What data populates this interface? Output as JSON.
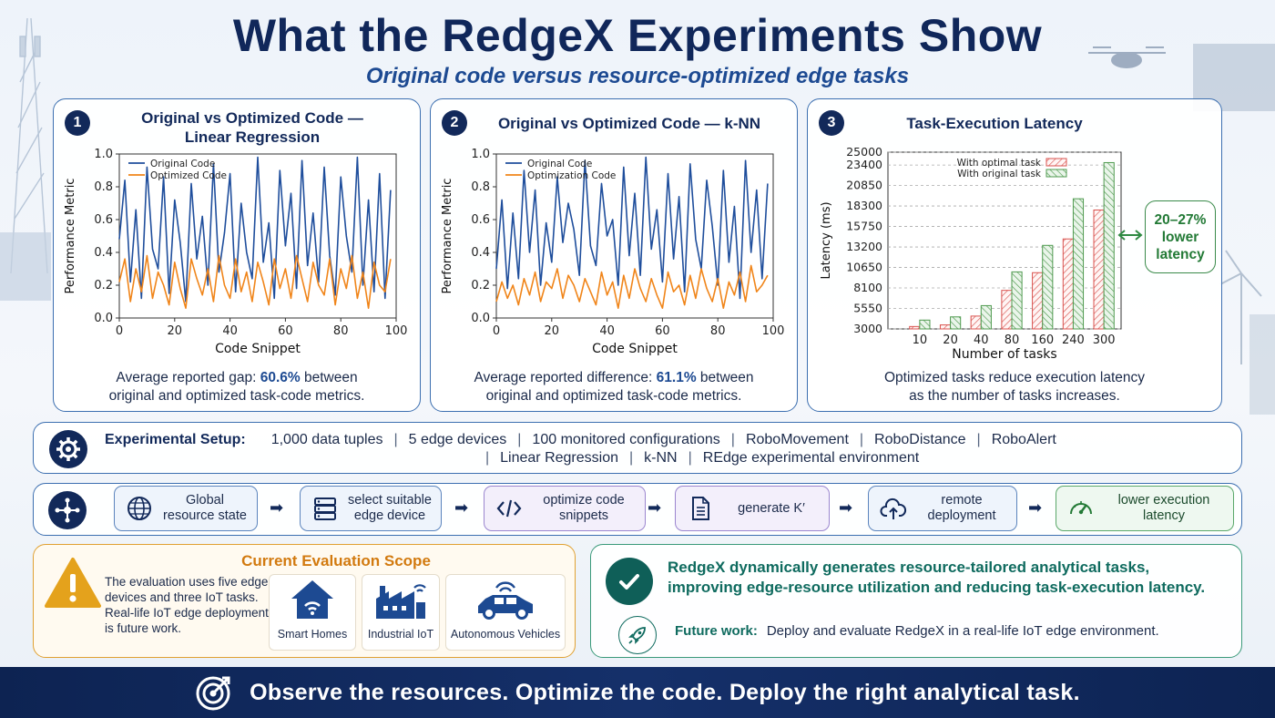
{
  "header": {
    "title": "What the RedgeX Experiments Show",
    "subtitle": "Original code versus resource-optimized edge tasks"
  },
  "panels": [
    {
      "number": "1",
      "title": "Original vs Optimized Code —\nLinear Regression",
      "caption_pre": "Average reported gap: ",
      "caption_value": "60.6%",
      "caption_post": " between\noriginal and optimized task-code metrics."
    },
    {
      "number": "2",
      "title": "Original vs Optimized Code — k-NN",
      "caption_pre": "Average reported difference: ",
      "caption_value": "61.1%",
      "caption_post": " between\noriginal and optimized task-code metrics."
    },
    {
      "number": "3",
      "title": "Task-Execution Latency",
      "caption": "Optimized tasks reduce execution latency\nas the number of tasks increases.",
      "badge": "20–27%\nlower\nlatency"
    }
  ],
  "chart_data": [
    {
      "type": "line",
      "title": "",
      "xlabel": "Code Snippet",
      "ylabel": "Performance Metric",
      "xlim": [
        0,
        100
      ],
      "ylim": [
        0.0,
        1.0
      ],
      "xticks": [
        "0",
        "20",
        "40",
        "60",
        "80",
        "100"
      ],
      "yticks": [
        "0.0",
        "0.2",
        "0.4",
        "0.6",
        "0.8",
        "1.0"
      ],
      "legend": "top-left",
      "x": [
        0,
        2,
        4,
        6,
        8,
        10,
        12,
        14,
        16,
        18,
        20,
        22,
        24,
        26,
        28,
        30,
        32,
        34,
        36,
        38,
        40,
        42,
        44,
        46,
        48,
        50,
        52,
        54,
        56,
        58,
        60,
        62,
        64,
        66,
        68,
        70,
        72,
        74,
        76,
        78,
        80,
        82,
        84,
        86,
        88,
        90,
        92,
        94,
        96,
        98
      ],
      "series": [
        {
          "name": "Original Code",
          "color": "#1f4e9c",
          "values": [
            0.48,
            0.84,
            0.22,
            0.66,
            0.12,
            0.92,
            0.42,
            0.3,
            0.86,
            0.15,
            0.72,
            0.46,
            0.1,
            0.82,
            0.36,
            0.62,
            0.2,
            0.94,
            0.28,
            0.52,
            0.88,
            0.16,
            0.7,
            0.4,
            0.24,
            0.98,
            0.34,
            0.58,
            0.12,
            0.9,
            0.44,
            0.76,
            0.18,
            0.96,
            0.32,
            0.64,
            0.22,
            0.92,
            0.38,
            0.14,
            0.86,
            0.5,
            0.28,
            0.98,
            0.2,
            0.72,
            0.16,
            0.88,
            0.12,
            0.78
          ]
        },
        {
          "name": "Optimized Code",
          "color": "#f0851a",
          "values": [
            0.22,
            0.36,
            0.1,
            0.3,
            0.16,
            0.38,
            0.12,
            0.28,
            0.2,
            0.08,
            0.34,
            0.18,
            0.06,
            0.36,
            0.24,
            0.14,
            0.3,
            0.1,
            0.38,
            0.2,
            0.12,
            0.36,
            0.16,
            0.28,
            0.1,
            0.34,
            0.22,
            0.08,
            0.36,
            0.18,
            0.3,
            0.12,
            0.38,
            0.24,
            0.1,
            0.34,
            0.2,
            0.14,
            0.36,
            0.08,
            0.3,
            0.18,
            0.38,
            0.12,
            0.28,
            0.06,
            0.34,
            0.2,
            0.16,
            0.36
          ]
        }
      ]
    },
    {
      "type": "line",
      "title": "",
      "xlabel": "Code Snippet",
      "ylabel": "Performance Metric",
      "xlim": [
        0,
        100
      ],
      "ylim": [
        0.0,
        1.0
      ],
      "xticks": [
        "0",
        "20",
        "40",
        "60",
        "80",
        "100"
      ],
      "yticks": [
        "0.0",
        "0.2",
        "0.4",
        "0.6",
        "0.8",
        "1.0"
      ],
      "legend": "top-left",
      "x": [
        0,
        2,
        4,
        6,
        8,
        10,
        12,
        14,
        16,
        18,
        20,
        22,
        24,
        26,
        28,
        30,
        32,
        34,
        36,
        38,
        40,
        42,
        44,
        46,
        48,
        50,
        52,
        54,
        56,
        58,
        60,
        62,
        64,
        66,
        68,
        70,
        72,
        74,
        76,
        78,
        80,
        82,
        84,
        86,
        88,
        90,
        92,
        94,
        96,
        98
      ],
      "series": [
        {
          "name": "Original Code",
          "color": "#1f4e9c",
          "values": [
            0.3,
            0.72,
            0.18,
            0.64,
            0.24,
            0.9,
            0.4,
            0.78,
            0.2,
            0.58,
            0.34,
            0.86,
            0.46,
            0.7,
            0.54,
            0.26,
            0.96,
            0.44,
            0.32,
            0.82,
            0.5,
            0.6,
            0.2,
            0.92,
            0.38,
            0.76,
            0.26,
            0.98,
            0.42,
            0.66,
            0.22,
            0.88,
            0.36,
            0.74,
            0.16,
            0.94,
            0.48,
            0.3,
            0.84,
            0.56,
            0.2,
            0.9,
            0.34,
            0.68,
            0.12,
            0.96,
            0.4,
            0.78,
            0.24,
            0.82
          ]
        },
        {
          "name": "Optimization Code",
          "color": "#f0851a",
          "values": [
            0.1,
            0.22,
            0.12,
            0.2,
            0.08,
            0.24,
            0.14,
            0.28,
            0.1,
            0.22,
            0.18,
            0.3,
            0.12,
            0.26,
            0.2,
            0.1,
            0.24,
            0.16,
            0.08,
            0.28,
            0.14,
            0.22,
            0.06,
            0.26,
            0.12,
            0.3,
            0.18,
            0.1,
            0.24,
            0.14,
            0.06,
            0.28,
            0.16,
            0.2,
            0.08,
            0.26,
            0.12,
            0.3,
            0.18,
            0.1,
            0.24,
            0.06,
            0.22,
            0.14,
            0.28,
            0.1,
            0.32,
            0.16,
            0.2,
            0.26
          ]
        }
      ]
    },
    {
      "type": "bar",
      "title": "",
      "xlabel": "Number of tasks",
      "ylabel": "Latency (ms)",
      "categories": [
        "10",
        "20",
        "40",
        "80",
        "160",
        "240",
        "300"
      ],
      "ylim": [
        3000,
        25000
      ],
      "yticks": [
        "3000",
        "5550",
        "8100",
        "10650",
        "13200",
        "15750",
        "18300",
        "20850",
        "23400",
        "25000"
      ],
      "ytick_values": [
        3000,
        5550,
        8100,
        10650,
        13200,
        15750,
        18300,
        20850,
        23400,
        25000
      ],
      "grid": true,
      "legend": "top-left",
      "series": [
        {
          "name": "With optimal task",
          "color": "#d9534f",
          "values": [
            3300,
            3500,
            4600,
            7800,
            10000,
            14200,
            17800
          ]
        },
        {
          "name": "With original task",
          "color": "#4f9a4f",
          "values": [
            4100,
            4500,
            5900,
            10100,
            13400,
            19200,
            23700
          ]
        }
      ]
    }
  ],
  "setup": {
    "label": "Experimental Setup:",
    "items_line1": [
      "1,000 data tuples",
      "5 edge devices",
      "100 monitored configurations",
      "RoboMovement",
      "RoboDistance",
      "RoboAlert"
    ],
    "items_line2": [
      "Linear Regression",
      "k-NN",
      "REdge experimental environment"
    ]
  },
  "flow": {
    "steps": [
      {
        "label": "Global\nresource state",
        "icon": "globe-icon"
      },
      {
        "label": "select suitable\nedge device",
        "icon": "server-icon"
      },
      {
        "label": "optimize code\nsnippets",
        "icon": "code-icon"
      },
      {
        "label": "generate K′",
        "icon": "document-icon"
      },
      {
        "label": "remote\ndeployment",
        "icon": "cloud-upload-icon"
      },
      {
        "label": "lower execution\nlatency",
        "icon": "gauge-icon"
      }
    ]
  },
  "scope": {
    "title": "Current Evaluation Scope",
    "text": "The evaluation uses five edge devices and three IoT tasks. Real-life IoT edge deployment is future work.",
    "tiles": [
      "Smart Homes",
      "Industrial IoT",
      "Autonomous Vehicles"
    ]
  },
  "outcome": {
    "text": "RedgeX dynamically generates resource-tailored analytical tasks, improving edge-resource utilization and reducing task-execution latency.",
    "future_label": "Future work:",
    "future_text": "Deploy and evaluate RedgeX in a real-life IoT edge environment."
  },
  "banner": {
    "text": "Observe the resources. Optimize the code. Deploy the right analytical task."
  },
  "colors": {
    "navy": "#12295a",
    "accent": "#1d4a92",
    "orange": "#f0851a",
    "green": "#237a36",
    "teal": "#0f6b5f"
  }
}
